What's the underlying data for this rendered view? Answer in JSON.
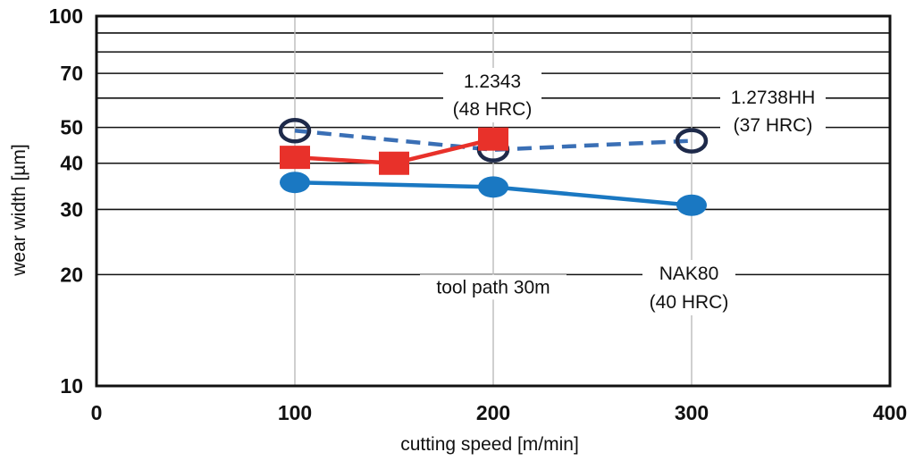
{
  "chart_data": {
    "type": "line",
    "title": "",
    "xlabel": "cutting speed [m/min]",
    "ylabel": "wear width [µm]",
    "xlim": [
      0,
      400
    ],
    "ylim": [
      10,
      100
    ],
    "yscale": "log",
    "grid": "horizontal and vertical at 100/200/300",
    "x_ticks": [
      0,
      100,
      200,
      300,
      400
    ],
    "y_ticks": [
      10,
      20,
      30,
      40,
      50,
      70,
      100
    ],
    "y_gridlines": [
      10,
      20,
      30,
      40,
      50,
      60,
      70,
      80,
      90,
      100
    ],
    "series": [
      {
        "name": "1.2738HH (37 HRC)",
        "label_line1": "1.2738HH",
        "label_line2": "(37 HRC)",
        "color": "#3a6fb5",
        "marker_color": "#1e2a4a",
        "style": "dashed",
        "marker": "open-circle",
        "x": [
          100,
          200,
          300
        ],
        "y": [
          49,
          43.5,
          46
        ]
      },
      {
        "name": "1.2343 (48 HRC)",
        "label_line1": "1.2343",
        "label_line2": "(48 HRC)",
        "color": "#e8312a",
        "style": "solid",
        "marker": "square",
        "x": [
          100,
          150,
          200
        ],
        "y": [
          41.5,
          40,
          46.5
        ]
      },
      {
        "name": "NAK80 (40 HRC)",
        "label_line1": "NAK80",
        "label_line2": "(40 HRC)",
        "color": "#1a78c2",
        "style": "solid",
        "marker": "filled-circle",
        "x": [
          100,
          200,
          300
        ],
        "y": [
          35.5,
          34.5,
          30.8
        ]
      }
    ],
    "annotations": [
      {
        "text": "tool path 30m",
        "x": 200,
        "y": 17.8
      }
    ]
  }
}
